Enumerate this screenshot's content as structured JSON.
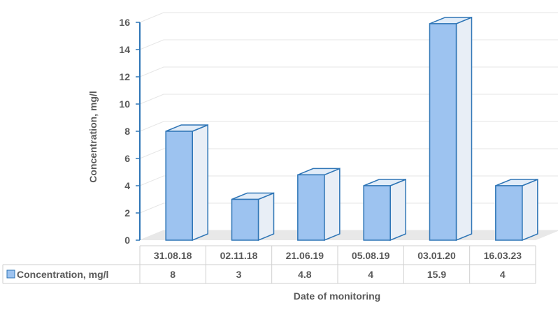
{
  "chart_data": {
    "type": "bar",
    "categories": [
      "31.08.18",
      "02.11.18",
      "21.06.19",
      "05.08.19",
      "03.01.20",
      "16.03.23"
    ],
    "series": [
      {
        "name": "Concentration, mg/l",
        "values": [
          8,
          3,
          4.8,
          4,
          15.9,
          4
        ]
      }
    ],
    "data_labels": [
      "8",
      "3",
      "4.8",
      "4",
      "15.9",
      "4"
    ],
    "ylabel": "Concentration, mg/l",
    "xlabel": "Date of monitoring",
    "ylim": [
      0,
      16
    ],
    "yticks": [
      0,
      2,
      4,
      6,
      8,
      10,
      12,
      14,
      16
    ],
    "grid": true,
    "legend": "data-table",
    "colors": {
      "bar_front": "#9DC3F0",
      "bar_side": "#E8EEF6",
      "bar_top": "#E1ECF8",
      "bar_edge": "#2E75B6",
      "grid": "#E6E6E6",
      "floor": "#E8E8E8",
      "table_border": "#CFCFCF",
      "text": "#595959"
    }
  }
}
